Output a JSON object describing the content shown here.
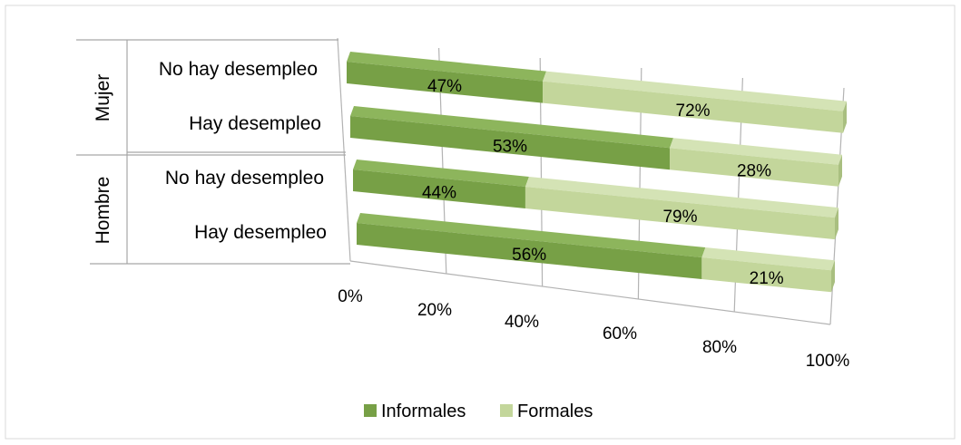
{
  "chart_data": {
    "type": "bar",
    "orientation": "horizontal",
    "stacked": "percent",
    "three_d": true,
    "groups": [
      {
        "label": "Mujer",
        "categories": [
          "No hay desempleo",
          "Hay desempleo"
        ]
      },
      {
        "label": "Hombre",
        "categories": [
          "No hay desempleo",
          "Hay desempleo"
        ]
      }
    ],
    "categories": [
      "Mujer - No hay desempleo",
      "Mujer - Hay desempleo",
      "Hombre - No hay desempleo",
      "Hombre - Hay desempleo"
    ],
    "series": [
      {
        "name": "Informales",
        "color": "#77a046",
        "top_color": "#8db55c",
        "values": [
          47,
          53,
          44,
          56
        ],
        "labels": [
          "47%",
          "53%",
          "44%",
          "56%"
        ]
      },
      {
        "name": "Formales",
        "color": "#c3d69b",
        "top_color": "#d4e3b5",
        "values": [
          72,
          28,
          79,
          21
        ],
        "labels": [
          "72%",
          "28%",
          "79%",
          "21%"
        ]
      }
    ],
    "xlim": [
      0,
      100
    ],
    "x_ticks": [
      "0%",
      "20%",
      "40%",
      "60%",
      "80%",
      "100%"
    ],
    "grid": true,
    "legend_position": "bottom"
  }
}
